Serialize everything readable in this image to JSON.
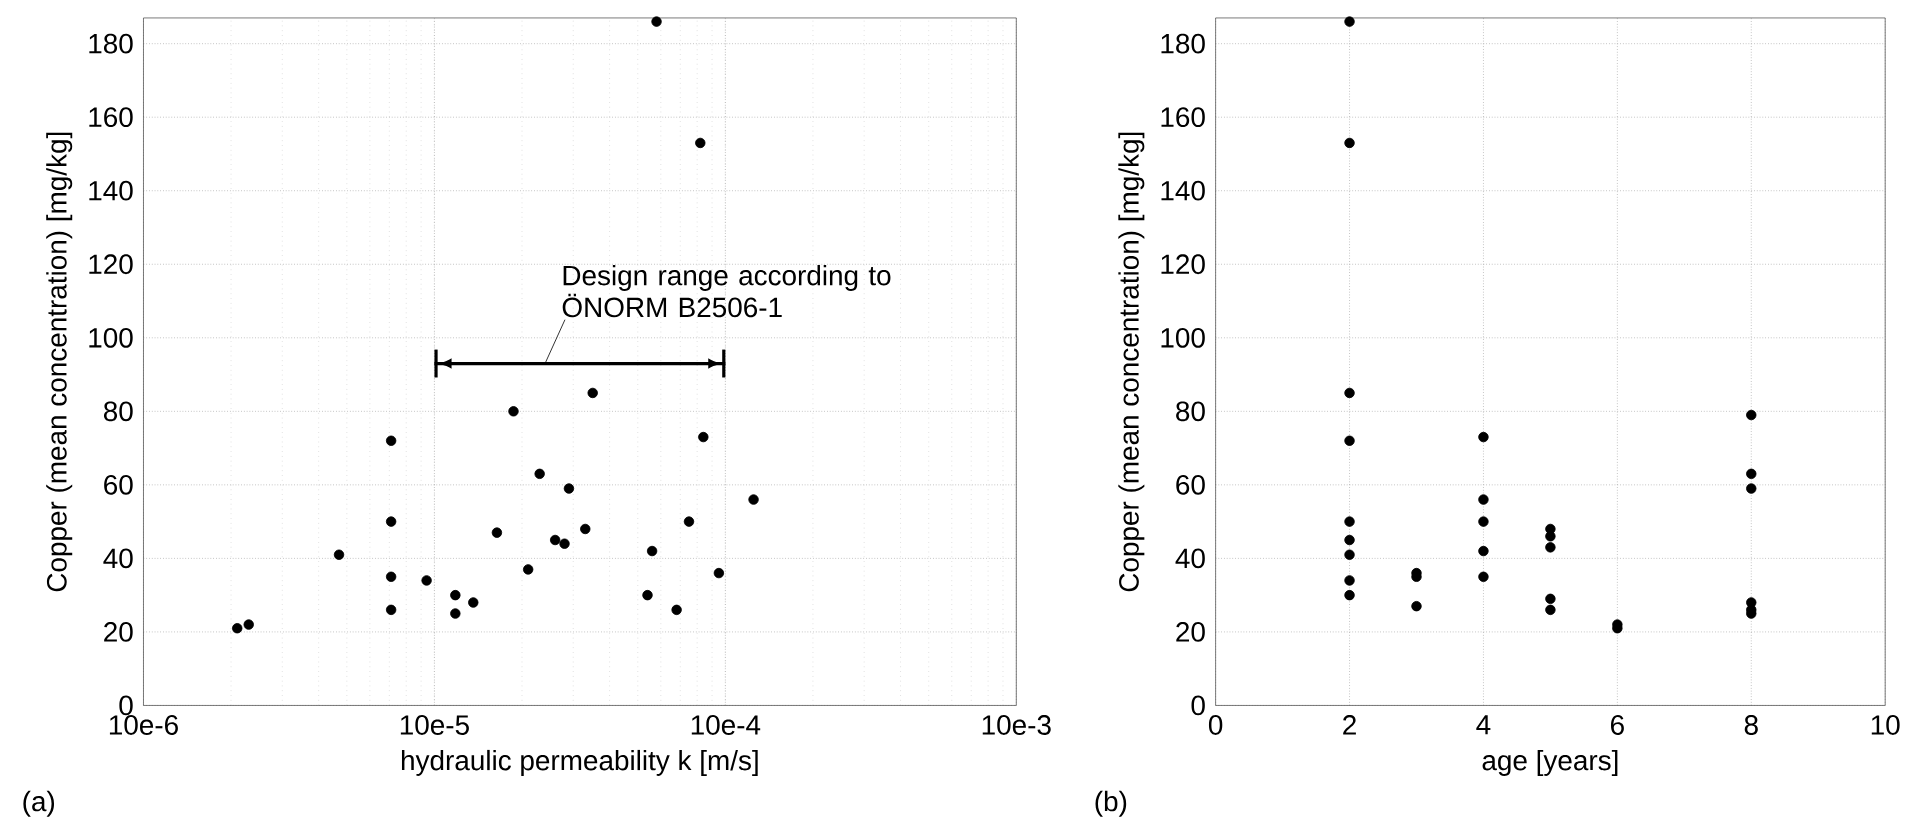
{
  "chart_data": [
    {
      "type": "scatter",
      "xlabel": "hydraulic permeability k [m/s]",
      "ylabel": "Copper (mean concentration) [mg/kg]",
      "log": "x",
      "grid": true,
      "xlim": [
        1e-05,
        0.01
      ],
      "ylim": [
        0,
        187
      ],
      "xticks": [
        {
          "value": 1e-05,
          "label": "10e-6"
        },
        {
          "value": 0.0001,
          "label": "10e-5"
        },
        {
          "value": 0.001,
          "label": "10e-4"
        },
        {
          "value": 0.01,
          "label": "10e-3"
        }
      ],
      "yticks": [
        0,
        20,
        40,
        60,
        80,
        100,
        120,
        140,
        160,
        180
      ],
      "annotations": [
        "(a)",
        {
          "text": "Design range according to ÖNORM B2506-1",
          "x": 0.00024,
          "y": 93
        }
      ],
      "series": [
        {
          "type": "scatter",
          "color": "#000000",
          "marker": "circle",
          "x": [
            2.1e-05,
            2.3e-05,
            4.7e-05,
            7.1e-05,
            7.1e-05,
            7.1e-05,
            7.1e-05,
            9.4e-05,
            0.000118,
            0.000118,
            0.000136,
            0.000164,
            0.000187,
            0.00021,
            0.00023,
            0.00026,
            0.00028,
            0.00029,
            0.00033,
            0.00035,
            0.00054,
            0.00056,
            0.00068,
            0.00075,
            0.00084,
            0.00095,
            0.00125,
            0.00058,
            0.00082
          ],
          "values": [
            21,
            22,
            41,
            72,
            50,
            35,
            26,
            34,
            30,
            25,
            28,
            47,
            80,
            37,
            63,
            45,
            44,
            59,
            48,
            85,
            30,
            42,
            26,
            50,
            73,
            36,
            56,
            186,
            153
          ]
        },
        {
          "type": "line",
          "color": "#000000",
          "marker": "none",
          "x": [
            0.0001,
            0.001
          ],
          "values": [
            93,
            93
          ]
        }
      ]
    },
    {
      "type": "scatter",
      "xlabel": "age [years]",
      "ylabel": "Copper (mean concentration) [mg/kg]",
      "annotations": [
        "(b)"
      ],
      "grid": true,
      "xlim": [
        0,
        10
      ],
      "ylim": [
        0,
        187
      ],
      "xticks": [
        0,
        2,
        4,
        6,
        8,
        10
      ],
      "yticks": [
        0,
        20,
        40,
        60,
        80,
        100,
        120,
        140,
        160,
        180
      ],
      "series": [
        {
          "color": "#000000",
          "marker": "circle",
          "x": [
            2,
            2,
            2,
            2,
            2,
            2,
            2,
            2,
            2,
            3,
            3,
            3,
            4,
            4,
            4,
            4,
            4,
            5,
            5,
            5,
            5,
            5,
            6,
            6,
            8,
            8,
            8,
            8,
            8,
            8
          ],
          "values": [
            186,
            153,
            85,
            72,
            50,
            45,
            41,
            34,
            30,
            36,
            35,
            27,
            73,
            56,
            50,
            42,
            35,
            48,
            46,
            43,
            29,
            26,
            22,
            21,
            79,
            63,
            59,
            28,
            26,
            25
          ]
        }
      ]
    }
  ]
}
